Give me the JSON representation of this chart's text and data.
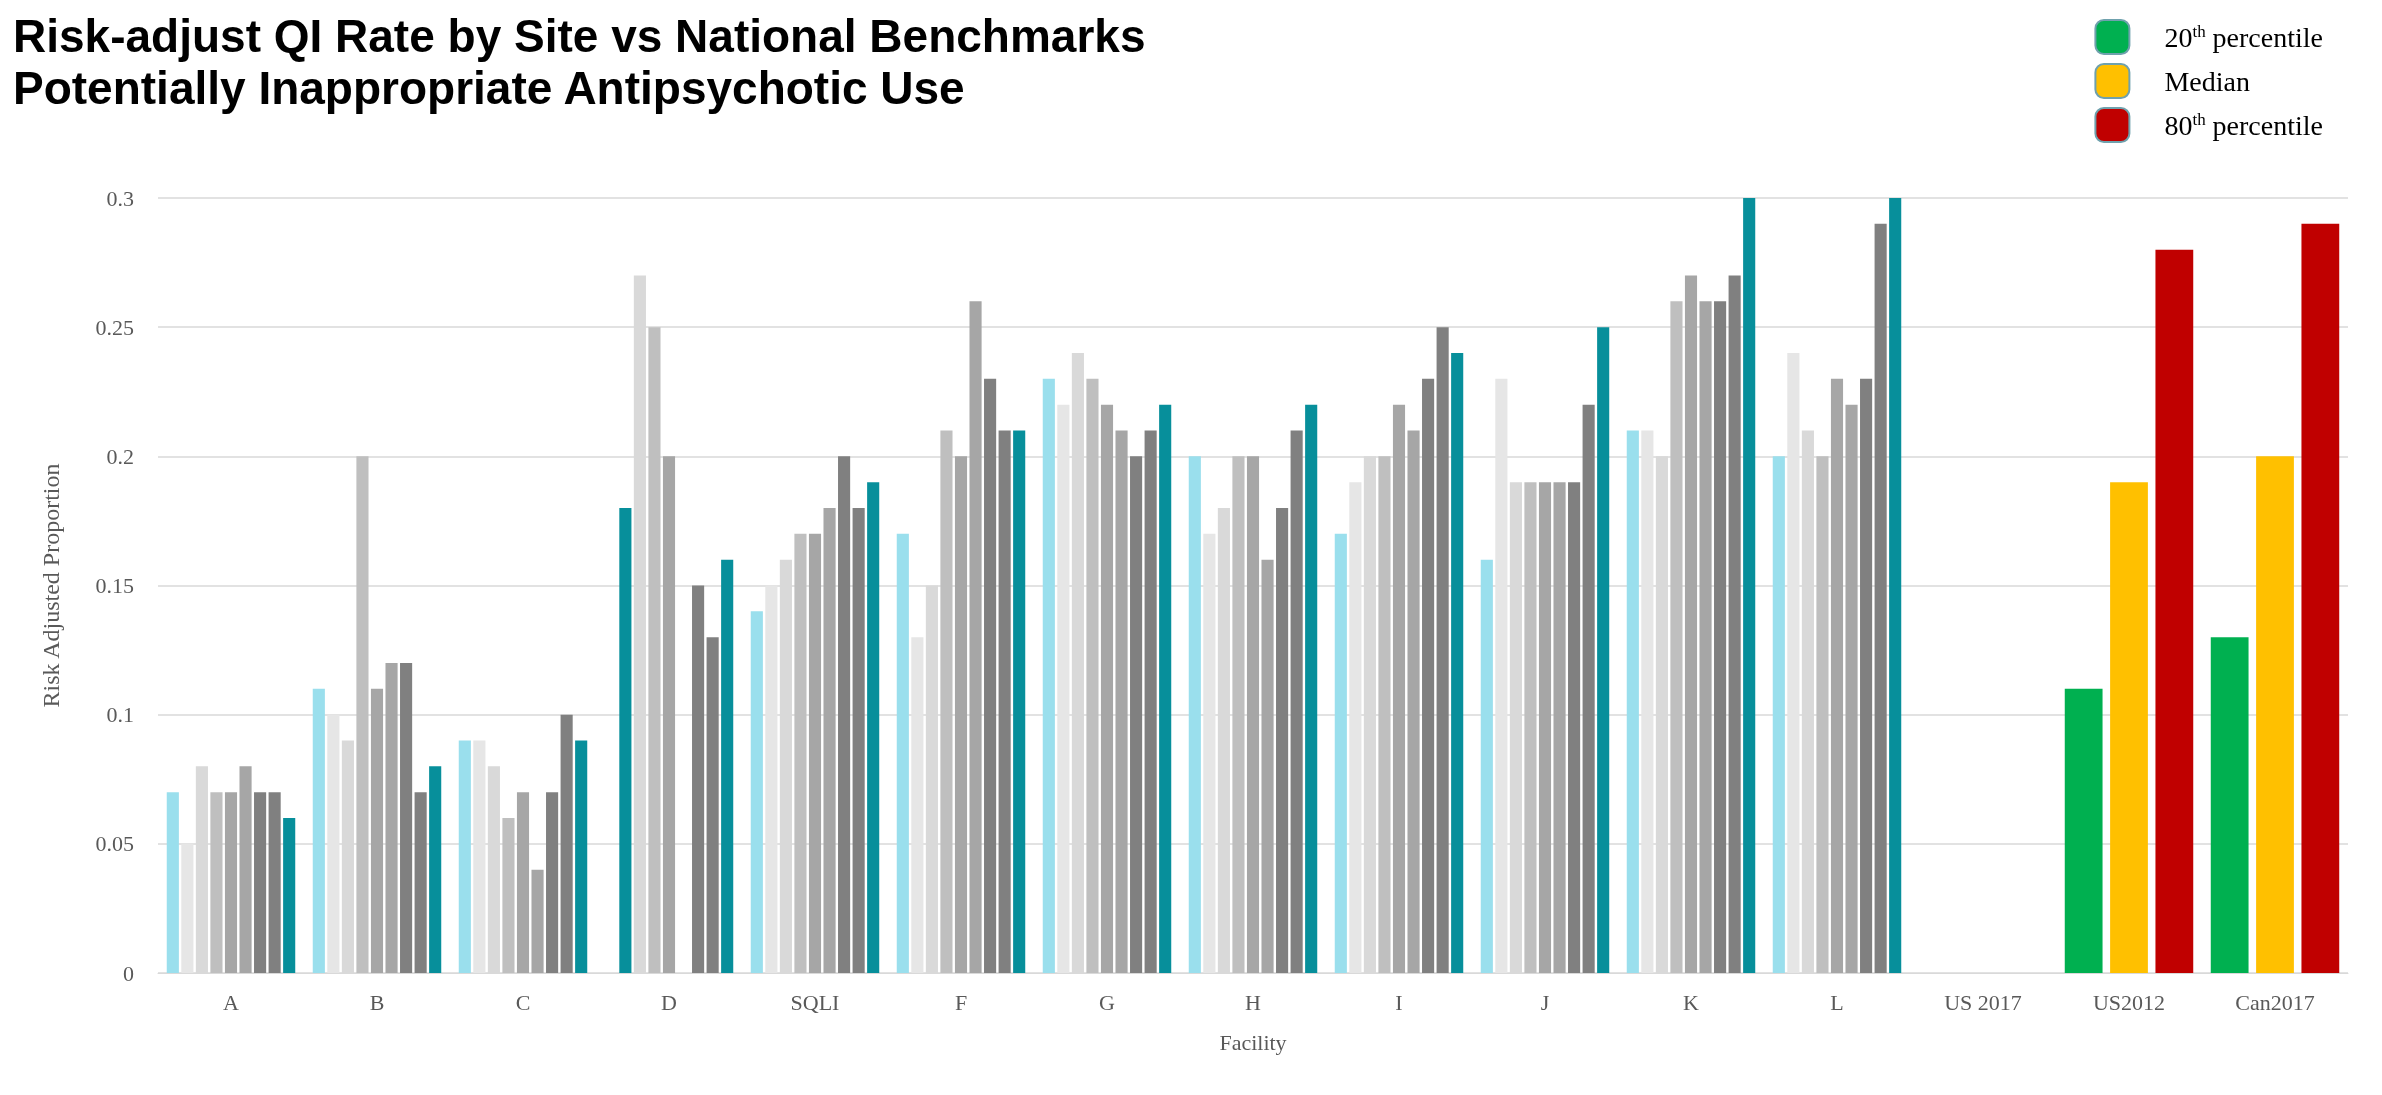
{
  "chart_data": {
    "type": "bar",
    "title": "Risk-adjust QI Rate by Site vs National Benchmarks",
    "subtitle": "Potentially Inappropriate Antipsychotic Use",
    "xlabel": "Facility",
    "ylabel": "Risk Adjusted Proportion",
    "categories": [
      "A",
      "B",
      "C",
      "D",
      "SQLI",
      "F",
      "G",
      "H",
      "I",
      "J",
      "K",
      "L",
      "US 2017",
      "US2012",
      "Can2017"
    ],
    "ylim": [
      0,
      0.3
    ],
    "yticks": [
      0,
      0.05,
      0.1,
      0.15,
      0.2,
      0.25,
      0.3
    ],
    "grid": "y",
    "legend": "top right",
    "series": [
      {
        "color": "#9adfed",
        "values": [
          0.07,
          0.11,
          0.09,
          null,
          0.14,
          0.17,
          0.23,
          0.2,
          0.17,
          0.16,
          0.21,
          0.2,
          null,
          null,
          null
        ]
      },
      {
        "color": "#e6e6e6",
        "colors": [
          "#e6e6e6",
          "#e6e6e6",
          "#e6e6e6",
          "#078f9b",
          "#e6e6e6",
          "#e6e6e6",
          "#e6e6e6",
          "#e6e6e6",
          "#e6e6e6",
          "#e6e6e6",
          "#e6e6e6",
          "#e6e6e6",
          "#e6e6e6",
          "#e6e6e6",
          "#e6e6e6"
        ],
        "values": [
          0.05,
          0.1,
          0.09,
          0.18,
          0.15,
          0.13,
          0.22,
          0.17,
          0.19,
          0.23,
          0.21,
          0.24,
          null,
          null,
          null
        ]
      },
      {
        "color": "#d9d9d9",
        "values": [
          0.08,
          0.09,
          0.08,
          0.27,
          0.16,
          0.15,
          0.24,
          0.18,
          0.2,
          0.19,
          0.2,
          0.21,
          null,
          null,
          null
        ]
      },
      {
        "color": "#bfbfbf",
        "values": [
          0.07,
          0.2,
          0.06,
          0.25,
          0.17,
          0.21,
          0.23,
          0.2,
          0.2,
          0.19,
          0.26,
          0.2,
          null,
          null,
          null
        ]
      },
      {
        "color": "#a6a6a6",
        "values": [
          0.07,
          0.11,
          0.07,
          0.2,
          0.17,
          0.2,
          0.22,
          0.2,
          0.22,
          0.19,
          0.27,
          0.23,
          null,
          null,
          null
        ]
      },
      {
        "color": "#a6a6a6",
        "values": [
          0.08,
          0.12,
          0.04,
          null,
          0.18,
          0.26,
          0.21,
          0.16,
          0.21,
          0.19,
          0.26,
          0.22,
          null,
          null,
          null
        ]
      },
      {
        "color": "#808080",
        "values": [
          0.07,
          0.12,
          0.07,
          0.15,
          0.2,
          0.23,
          0.2,
          0.18,
          0.23,
          0.19,
          0.26,
          0.23,
          null,
          null,
          null
        ]
      },
      {
        "color": "#808080",
        "values": [
          0.07,
          0.07,
          0.1,
          0.13,
          0.18,
          0.21,
          0.21,
          0.21,
          0.25,
          0.22,
          0.27,
          0.29,
          null,
          null,
          null
        ]
      },
      {
        "color": "#078f9b",
        "values": [
          0.06,
          0.08,
          0.09,
          0.16,
          0.19,
          0.21,
          0.22,
          0.22,
          0.24,
          0.25,
          0.3,
          0.3,
          null,
          null,
          null
        ]
      },
      {
        "name": "20$^{th}$ percentile",
        "color": "#00b050",
        "values": [
          null,
          null,
          null,
          null,
          null,
          null,
          null,
          null,
          null,
          null,
          null,
          null,
          null,
          0.11,
          0.13
        ]
      },
      {
        "name": "Median",
        "color": "#ffc000",
        "values": [
          null,
          null,
          null,
          null,
          null,
          null,
          null,
          null,
          null,
          null,
          null,
          null,
          null,
          0.19,
          0.2
        ]
      },
      {
        "name": "80$^{th}$ percentile",
        "color": "#c00000",
        "values": [
          null,
          null,
          null,
          null,
          null,
          null,
          null,
          null,
          null,
          null,
          null,
          null,
          null,
          0.28,
          0.29
        ]
      }
    ]
  }
}
